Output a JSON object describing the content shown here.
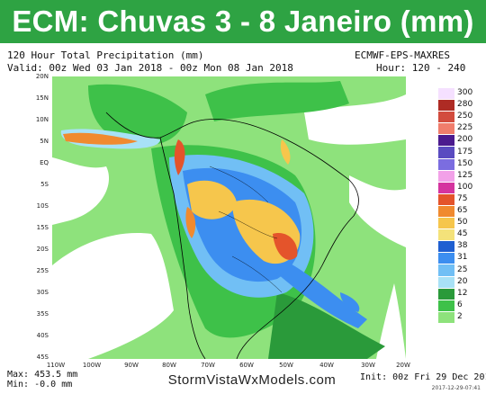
{
  "title": "ECM: Chuvas 3 - 8 Janeiro (mm)",
  "header": {
    "line1_left": "120 Hour Total Precipitation (mm)",
    "line1_right": "ECMWF-EPS-MAXRES",
    "line2_left": "Valid: 00z Wed 03 Jan 2018 - 00z Mon 08 Jan 2018",
    "line2_right": "Hour: 120 - 240"
  },
  "lat_labels": [
    "20N",
    "15N",
    "10N",
    "5N",
    "EQ",
    "5S",
    "10S",
    "15S",
    "20S",
    "25S",
    "30S",
    "35S",
    "40S",
    "45S"
  ],
  "lon_labels": [
    "110W",
    "100W",
    "90W",
    "80W",
    "70W",
    "60W",
    "50W",
    "40W",
    "30W",
    "20W"
  ],
  "colorbar": {
    "labels": [
      "300",
      "280",
      "250",
      "225",
      "200",
      "175",
      "150",
      "125",
      "100",
      "75",
      "65",
      "50",
      "45",
      "38",
      "31",
      "25",
      "20",
      "12",
      "6",
      "2"
    ],
    "colors": [
      "#f5e0ff",
      "#ae2b24",
      "#d24c3e",
      "#f07d6c",
      "#4b1a8e",
      "#5a4bc0",
      "#7b6de0",
      "#f2a1e8",
      "#d5349f",
      "#e4542b",
      "#f08a2f",
      "#f6c64c",
      "#f4e27a",
      "#1f5fd1",
      "#3c8ef0",
      "#71bff5",
      "#a8e1f6",
      "#2a9a3a",
      "#3ec149",
      "#8ee27c"
    ]
  },
  "footer": {
    "max": "Max: 453.5 mm",
    "min": "Min: -0.0 mm",
    "website": "StormVistaWxModels.com",
    "init": "Init: 00z Fri 29 Dec 2017",
    "stamp": "2017-12-29-07:41"
  }
}
